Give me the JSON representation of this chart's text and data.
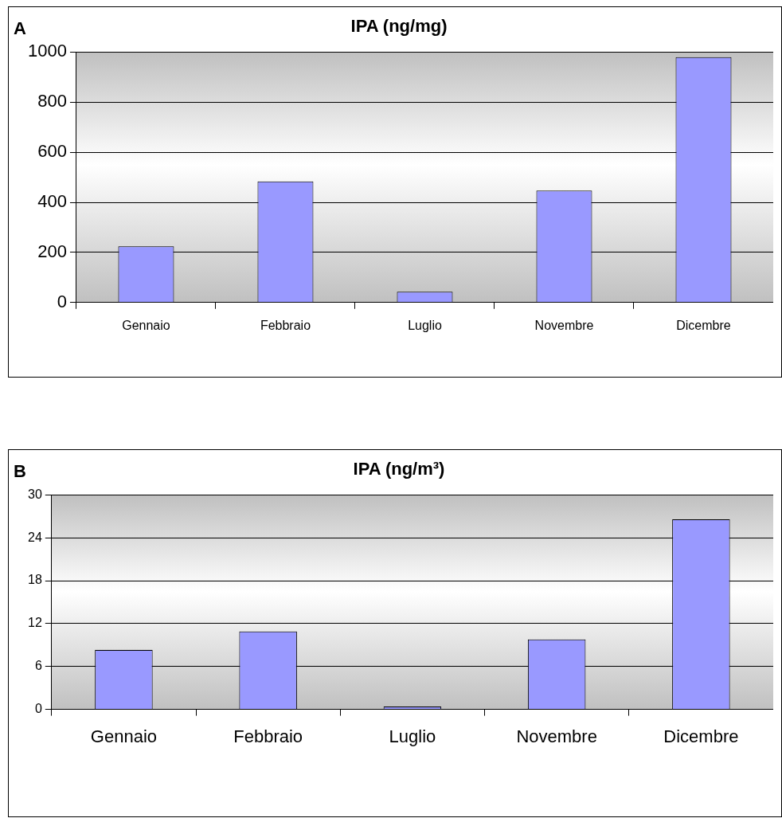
{
  "chart_data": [
    {
      "type": "bar",
      "title": "IPA (ng/mg)",
      "annotations": [
        "A"
      ],
      "categories": [
        "Gennaio",
        "Febbraio",
        "Luglio",
        "Novembre",
        "Dicembre"
      ],
      "values": [
        224,
        484,
        43,
        447,
        980
      ],
      "color": "#9999ff",
      "ylim": [
        0,
        1000
      ],
      "yticks": [
        0,
        200,
        400,
        600,
        800,
        1000
      ],
      "grid": "y",
      "legend": false
    },
    {
      "type": "bar",
      "title": "IPA (ng/m³)",
      "annotations": [
        "B"
      ],
      "categories": [
        "Gennaio",
        "Febbraio",
        "Luglio",
        "Novembre",
        "Dicembre"
      ],
      "values": [
        8.3,
        10.9,
        0.4,
        9.8,
        26.6
      ],
      "color": "#9999ff",
      "ylim": [
        0,
        30
      ],
      "yticks": [
        0,
        6,
        12,
        18,
        24,
        30
      ],
      "grid": "y",
      "legend": false
    }
  ]
}
